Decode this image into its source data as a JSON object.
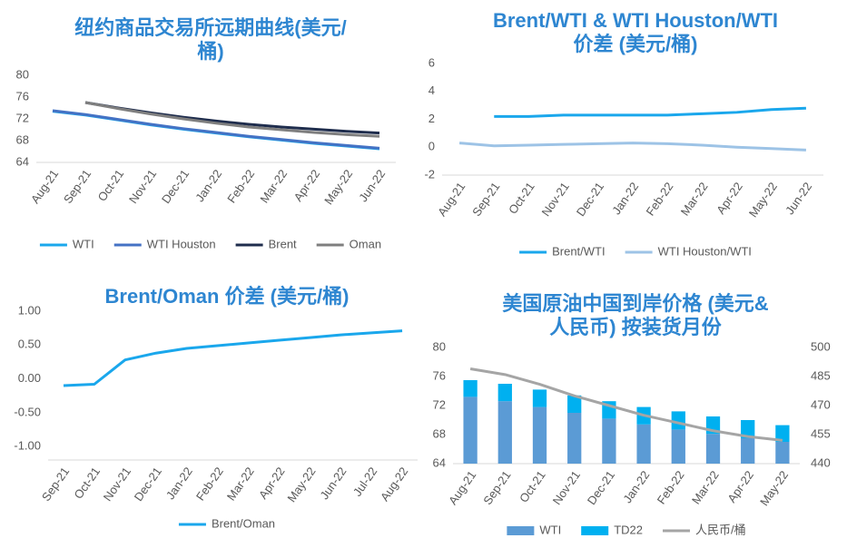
{
  "chart_data": [
    {
      "type": "line",
      "title": "纽约商品交易所远期曲线(美元/桶)",
      "categories": [
        "Aug-21",
        "Sep-21",
        "Oct-21",
        "Nov-21",
        "Dec-21",
        "Jan-22",
        "Feb-22",
        "Mar-22",
        "Apr-22",
        "May-22",
        "Jun-22"
      ],
      "series": [
        {
          "name": "WTI",
          "color": "#1aa7ec",
          "values": [
            73.4,
            72.7,
            71.8,
            70.9,
            70.1,
            69.4,
            68.7,
            68.1,
            67.5,
            67.0,
            66.5
          ]
        },
        {
          "name": "WTI Houston",
          "color": "#4472c4",
          "values": [
            73.5,
            72.8,
            71.9,
            71.0,
            70.2,
            69.5,
            68.8,
            68.2,
            67.6,
            67.1,
            66.6
          ]
        },
        {
          "name": "Brent",
          "color": "#1f2d4d",
          "values": [
            null,
            75.0,
            74.0,
            73.1,
            72.3,
            71.6,
            71.0,
            70.5,
            70.1,
            69.7,
            69.4
          ]
        },
        {
          "name": "Oman",
          "color": "#7f7f7f",
          "values": [
            null,
            75.0,
            73.9,
            72.9,
            72.0,
            71.2,
            70.5,
            70.0,
            69.5,
            69.1,
            68.8
          ]
        }
      ],
      "ylim": [
        64,
        80
      ],
      "yticks": [
        64,
        68,
        72,
        76,
        80
      ],
      "legend": "bottom"
    },
    {
      "type": "line",
      "title": "Brent/WTI & WTI Houston/WTI 价差 (美元/桶)",
      "categories": [
        "Aug-21",
        "Sep-21",
        "Oct-21",
        "Nov-21",
        "Dec-21",
        "Jan-22",
        "Feb-22",
        "Mar-22",
        "Apr-22",
        "May-22",
        "Jun-22"
      ],
      "series": [
        {
          "name": "Brent/WTI",
          "color": "#1aa7ec",
          "values": [
            null,
            2.2,
            2.2,
            2.3,
            2.3,
            2.3,
            2.3,
            2.4,
            2.5,
            2.7,
            2.8
          ]
        },
        {
          "name": "WTI Houston/WTI",
          "color": "#9dc3e6",
          "values": [
            0.3,
            0.1,
            0.15,
            0.2,
            0.25,
            0.3,
            0.25,
            0.15,
            0.0,
            -0.1,
            -0.2
          ]
        }
      ],
      "ylim": [
        -2,
        6
      ],
      "yticks": [
        -2,
        0,
        2,
        4,
        6
      ],
      "legend": "bottom"
    },
    {
      "type": "line",
      "title": "Brent/Oman 价差 (美元/桶)",
      "categories": [
        "Sep-21",
        "Oct-21",
        "Nov-21",
        "Dec-21",
        "Jan-22",
        "Feb-22",
        "Mar-22",
        "Apr-22",
        "May-22",
        "Jun-22",
        "Jul-22",
        "Aug-22"
      ],
      "series": [
        {
          "name": "Brent/Oman",
          "color": "#1aa7ec",
          "values": [
            -0.1,
            -0.08,
            0.28,
            0.38,
            0.45,
            0.49,
            0.53,
            0.57,
            0.61,
            0.65,
            0.68,
            0.71
          ]
        }
      ],
      "ylim": [
        -1.2,
        1.0
      ],
      "yticks": [
        {
          "value": -1,
          "label": "-1.00"
        },
        {
          "value": -0.5,
          "label": "-0.50"
        },
        {
          "value": 0,
          "label": "0.00"
        },
        {
          "value": 0.5,
          "label": "0.50"
        },
        {
          "value": 1,
          "label": "1.00"
        }
      ],
      "legend": "bottom"
    },
    {
      "type": "bar",
      "title": "美国原油中国到岸价格 (美元&人民币) 按装货月份",
      "stacked": true,
      "categories": [
        "Aug-21",
        "Sep-21",
        "Oct-21",
        "Nov-21",
        "Dec-21",
        "Jan-22",
        "Feb-22",
        "Mar-22",
        "Apr-22",
        "May-22"
      ],
      "series": [
        {
          "name": "WTI",
          "type": "bar",
          "color": "#5b9bd5",
          "values": [
            73.2,
            72.6,
            71.8,
            71.0,
            70.2,
            69.4,
            68.7,
            68.1,
            67.5,
            67.0
          ]
        },
        {
          "name": "TD22",
          "type": "bar",
          "color": "#00b0f0",
          "values": [
            2.3,
            2.4,
            2.4,
            2.4,
            2.4,
            2.4,
            2.5,
            2.4,
            2.5,
            2.3
          ]
        },
        {
          "name": "人民币/桶",
          "type": "line",
          "axis": "y2",
          "color": "#a5a5a5",
          "values": [
            489,
            486,
            481,
            475,
            470,
            465,
            461,
            457,
            454,
            452
          ]
        }
      ],
      "ylim": [
        64,
        80
      ],
      "yticks": [
        64,
        68,
        72,
        76,
        80
      ],
      "y2lim": [
        440,
        500
      ],
      "y2ticks": [
        440,
        455,
        470,
        485,
        500
      ],
      "legend": "bottom"
    }
  ]
}
